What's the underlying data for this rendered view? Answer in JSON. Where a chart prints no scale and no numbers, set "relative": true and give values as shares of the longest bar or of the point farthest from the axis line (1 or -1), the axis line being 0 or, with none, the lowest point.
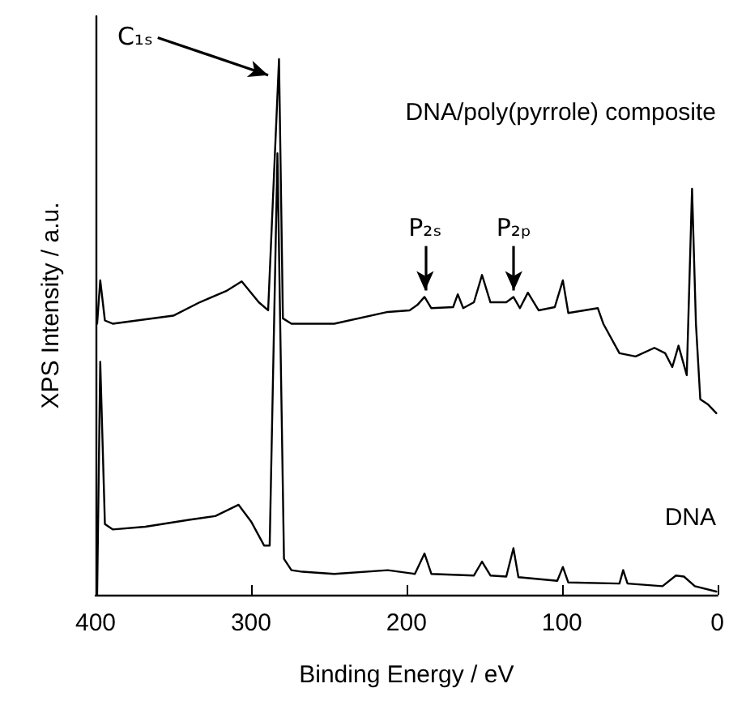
{
  "chart_data": {
    "type": "line",
    "relative": true,
    "xlabel": "Binding Energy / eV",
    "ylabel": "XPS Intensity / a.u.",
    "xlim": [
      400,
      0
    ],
    "xticks": [
      400,
      300,
      200,
      100,
      0
    ],
    "legend": false,
    "grid": false,
    "marker": "none",
    "line_style": "solid",
    "annotations": [
      "C₁ₛ",
      {
        "text": "P₂ₛ",
        "x": 188,
        "y": 0.556
      },
      {
        "text": "P₂ₚ",
        "x": 131,
        "y": 0.556
      }
    ],
    "series": [
      {
        "name": "DNA/poly(pyrrole) composite",
        "color": "#000000",
        "x": [
          399,
          397,
          394,
          389,
          350,
          333,
          316,
          306,
          295,
          289,
          282,
          279.5,
          274,
          246.5,
          212,
          198,
          193,
          188.4,
          184,
          170,
          167,
          163.5,
          156.6,
          151.4,
          146,
          135.8,
          131.2,
          127,
          121.9,
          115,
          104.6,
          99.4,
          95.9,
          76.9,
          73.4,
          63,
          52.6,
          40.5,
          33.6,
          29,
          25,
          19.7,
          16.3,
          13.8,
          11,
          5.9,
          0.7
        ],
        "values": [
          0.506,
          0.587,
          0.512,
          0.506,
          0.521,
          0.546,
          0.567,
          0.585,
          0.546,
          0.531,
          1.0,
          0.516,
          0.506,
          0.506,
          0.528,
          0.531,
          0.541,
          0.556,
          0.535,
          0.537,
          0.561,
          0.535,
          0.546,
          0.597,
          0.546,
          0.546,
          0.556,
          0.535,
          0.564,
          0.531,
          0.537,
          0.587,
          0.526,
          0.535,
          0.506,
          0.451,
          0.445,
          0.461,
          0.451,
          0.425,
          0.465,
          0.41,
          0.758,
          0.506,
          0.365,
          0.355,
          0.339
        ]
      },
      {
        "name": "DNA",
        "color": "#000000",
        "x": [
          399,
          397,
          394,
          389,
          368,
          340,
          323,
          308,
          300,
          291.6,
          288,
          283,
          278.8,
          274,
          267,
          246.5,
          212,
          194.6,
          188.4,
          184,
          156.6,
          151.4,
          146,
          135.8,
          131.2,
          128,
          103,
          99.4,
          95.9,
          63,
          60.6,
          57.8,
          35.3,
          26.7,
          21.5,
          14.5,
          0.7
        ],
        "values": [
          0.0,
          0.435,
          0.132,
          0.122,
          0.127,
          0.14,
          0.147,
          0.168,
          0.137,
          0.092,
          0.092,
          0.824,
          0.067,
          0.046,
          0.043,
          0.039,
          0.046,
          0.039,
          0.077,
          0.039,
          0.036,
          0.062,
          0.036,
          0.034,
          0.087,
          0.033,
          0.026,
          0.052,
          0.023,
          0.021,
          0.046,
          0.021,
          0.016,
          0.036,
          0.034,
          0.016,
          0.006
        ]
      }
    ]
  }
}
